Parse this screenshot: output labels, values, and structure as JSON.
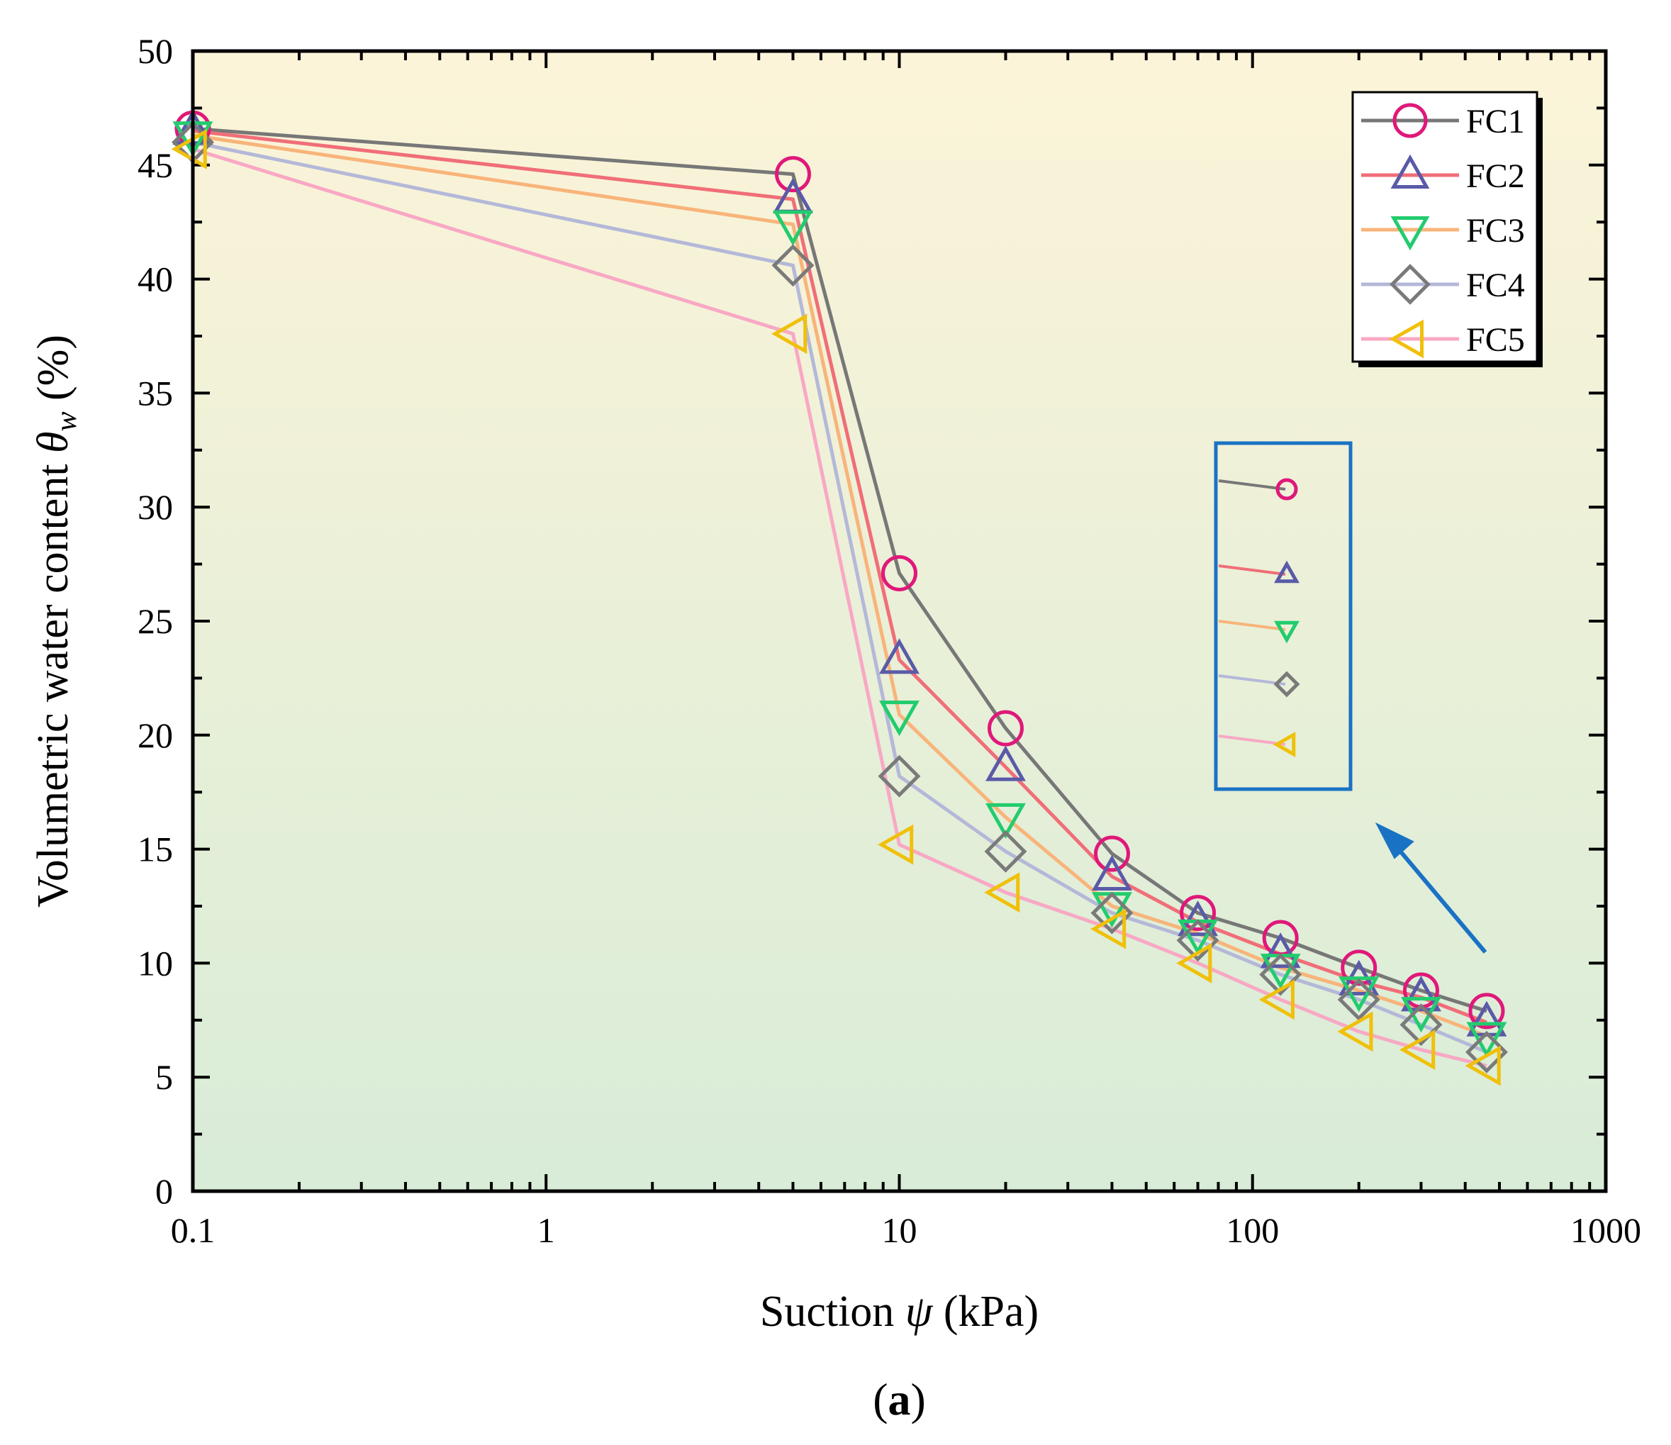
{
  "chart_data": {
    "type": "line",
    "xscale": "log",
    "xlim": [
      0.1,
      1000
    ],
    "ylim": [
      0,
      50
    ],
    "xticks": [
      "0.1",
      "1",
      "10",
      "100",
      "1000"
    ],
    "yticks": [
      "0",
      "5",
      "10",
      "15",
      "20",
      "25",
      "30",
      "35",
      "40",
      "45",
      "50"
    ],
    "xlabel": {
      "pre": "Suction ",
      "sym": "ψ",
      "post": " (kPa)"
    },
    "ylabel": {
      "pre": "Volumetric water content ",
      "sym": "θ",
      "sub": "w",
      "post": " (%)"
    },
    "panel_label": {
      "open": "(",
      "letter": "a",
      "close": ")"
    },
    "legend_position": "top-right",
    "grid": false,
    "x": [
      0.1,
      5,
      10,
      20,
      40,
      70,
      120,
      200,
      300,
      460
    ],
    "series": [
      {
        "name": "FC1",
        "marker": "circle",
        "line_color": "#777777",
        "marker_color": "#e0187a",
        "values": [
          46.6,
          44.6,
          27.1,
          20.3,
          14.8,
          12.2,
          11.1,
          9.8,
          8.8,
          7.9
        ]
      },
      {
        "name": "FC2",
        "marker": "triangle-up",
        "line_color": "#f06e78",
        "marker_color": "#5a5aa8",
        "values": [
          46.5,
          43.5,
          23.3,
          18.6,
          13.8,
          11.8,
          10.4,
          9.2,
          8.5,
          7.4
        ]
      },
      {
        "name": "FC3",
        "marker": "triangle-down",
        "line_color": "#f8b47a",
        "marker_color": "#22cc6e",
        "values": [
          46.3,
          42.4,
          20.9,
          16.4,
          12.5,
          11.3,
          9.8,
          8.8,
          7.9,
          6.8
        ]
      },
      {
        "name": "FC4",
        "marker": "diamond",
        "line_color": "#b4b8d8",
        "marker_color": "#7a7a7a",
        "values": [
          46.0,
          40.6,
          18.2,
          14.9,
          12.2,
          11.0,
          9.5,
          8.4,
          7.3,
          6.1
        ]
      },
      {
        "name": "FC5",
        "marker": "triangle-left",
        "line_color": "#f8a8c4",
        "marker_color": "#f0c00a",
        "values": [
          45.7,
          37.6,
          15.2,
          13.1,
          11.5,
          10.0,
          8.4,
          7.0,
          6.2,
          5.5
        ]
      }
    ],
    "colors": {
      "background_top": "#fcf4d8",
      "background_bottom": "#d8ecd8",
      "inset_border": "#1a72c4",
      "arrow": "#1a72c4"
    }
  }
}
